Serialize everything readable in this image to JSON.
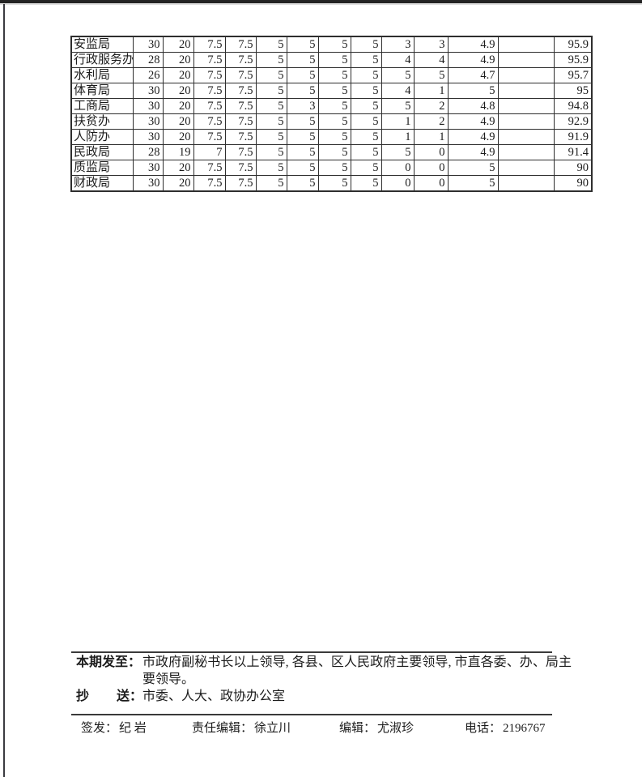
{
  "page": {
    "background_color": "#ffffff",
    "scan_edge_color": "#242424",
    "table_border_color": "#2e2e2e",
    "text_color": "#1c1c1c"
  },
  "table": {
    "rows": [
      {
        "name": "安监局",
        "values": [
          "30",
          "20",
          "7.5",
          "7.5",
          "5",
          "5",
          "5",
          "5",
          "3",
          "3",
          "4.9",
          "",
          "95.9"
        ]
      },
      {
        "name": "行政服务办",
        "values": [
          "28",
          "20",
          "7.5",
          "7.5",
          "5",
          "5",
          "5",
          "5",
          "4",
          "4",
          "4.9",
          "",
          "95.9"
        ]
      },
      {
        "name": "水利局",
        "values": [
          "26",
          "20",
          "7.5",
          "7.5",
          "5",
          "5",
          "5",
          "5",
          "5",
          "5",
          "4.7",
          "",
          "95.7"
        ]
      },
      {
        "name": "体育局",
        "values": [
          "30",
          "20",
          "7.5",
          "7.5",
          "5",
          "5",
          "5",
          "5",
          "4",
          "1",
          "5",
          "",
          "95"
        ]
      },
      {
        "name": "工商局",
        "values": [
          "30",
          "20",
          "7.5",
          "7.5",
          "5",
          "3",
          "5",
          "5",
          "5",
          "2",
          "4.8",
          "",
          "94.8"
        ]
      },
      {
        "name": "扶贫办",
        "values": [
          "30",
          "20",
          "7.5",
          "7.5",
          "5",
          "5",
          "5",
          "5",
          "1",
          "2",
          "4.9",
          "",
          "92.9"
        ]
      },
      {
        "name": "人防办",
        "values": [
          "30",
          "20",
          "7.5",
          "7.5",
          "5",
          "5",
          "5",
          "5",
          "1",
          "1",
          "4.9",
          "",
          "91.9"
        ]
      },
      {
        "name": "民政局",
        "values": [
          "28",
          "19",
          "7",
          "7.5",
          "5",
          "5",
          "5",
          "5",
          "5",
          "0",
          "4.9",
          "",
          "91.4"
        ]
      },
      {
        "name": "质监局",
        "values": [
          "30",
          "20",
          "7.5",
          "7.5",
          "5",
          "5",
          "5",
          "5",
          "0",
          "0",
          "5",
          "",
          "90"
        ]
      },
      {
        "name": "财政局",
        "values": [
          "30",
          "20",
          "7.5",
          "7.5",
          "5",
          "5",
          "5",
          "5",
          "0",
          "0",
          "5",
          "",
          "90"
        ]
      }
    ]
  },
  "footer": {
    "distribution_label": "本期发至：",
    "distribution_text": "市政府副秘书长以上领导, 各县、区人民政府主要领导, 市直各委、办、局主要领导。",
    "cc_label_left": "抄",
    "cc_label_right": "送：",
    "cc_text": "市委、人大、政协办公室",
    "issuer_label": "签发：",
    "issuer_name": "纪 岩",
    "chief_editor_label": "责任编辑：",
    "chief_editor_name": "徐立川",
    "editor_label": "编辑：",
    "editor_name": "尤淑珍",
    "phone_label": "电话：",
    "phone_number": "2196767"
  }
}
